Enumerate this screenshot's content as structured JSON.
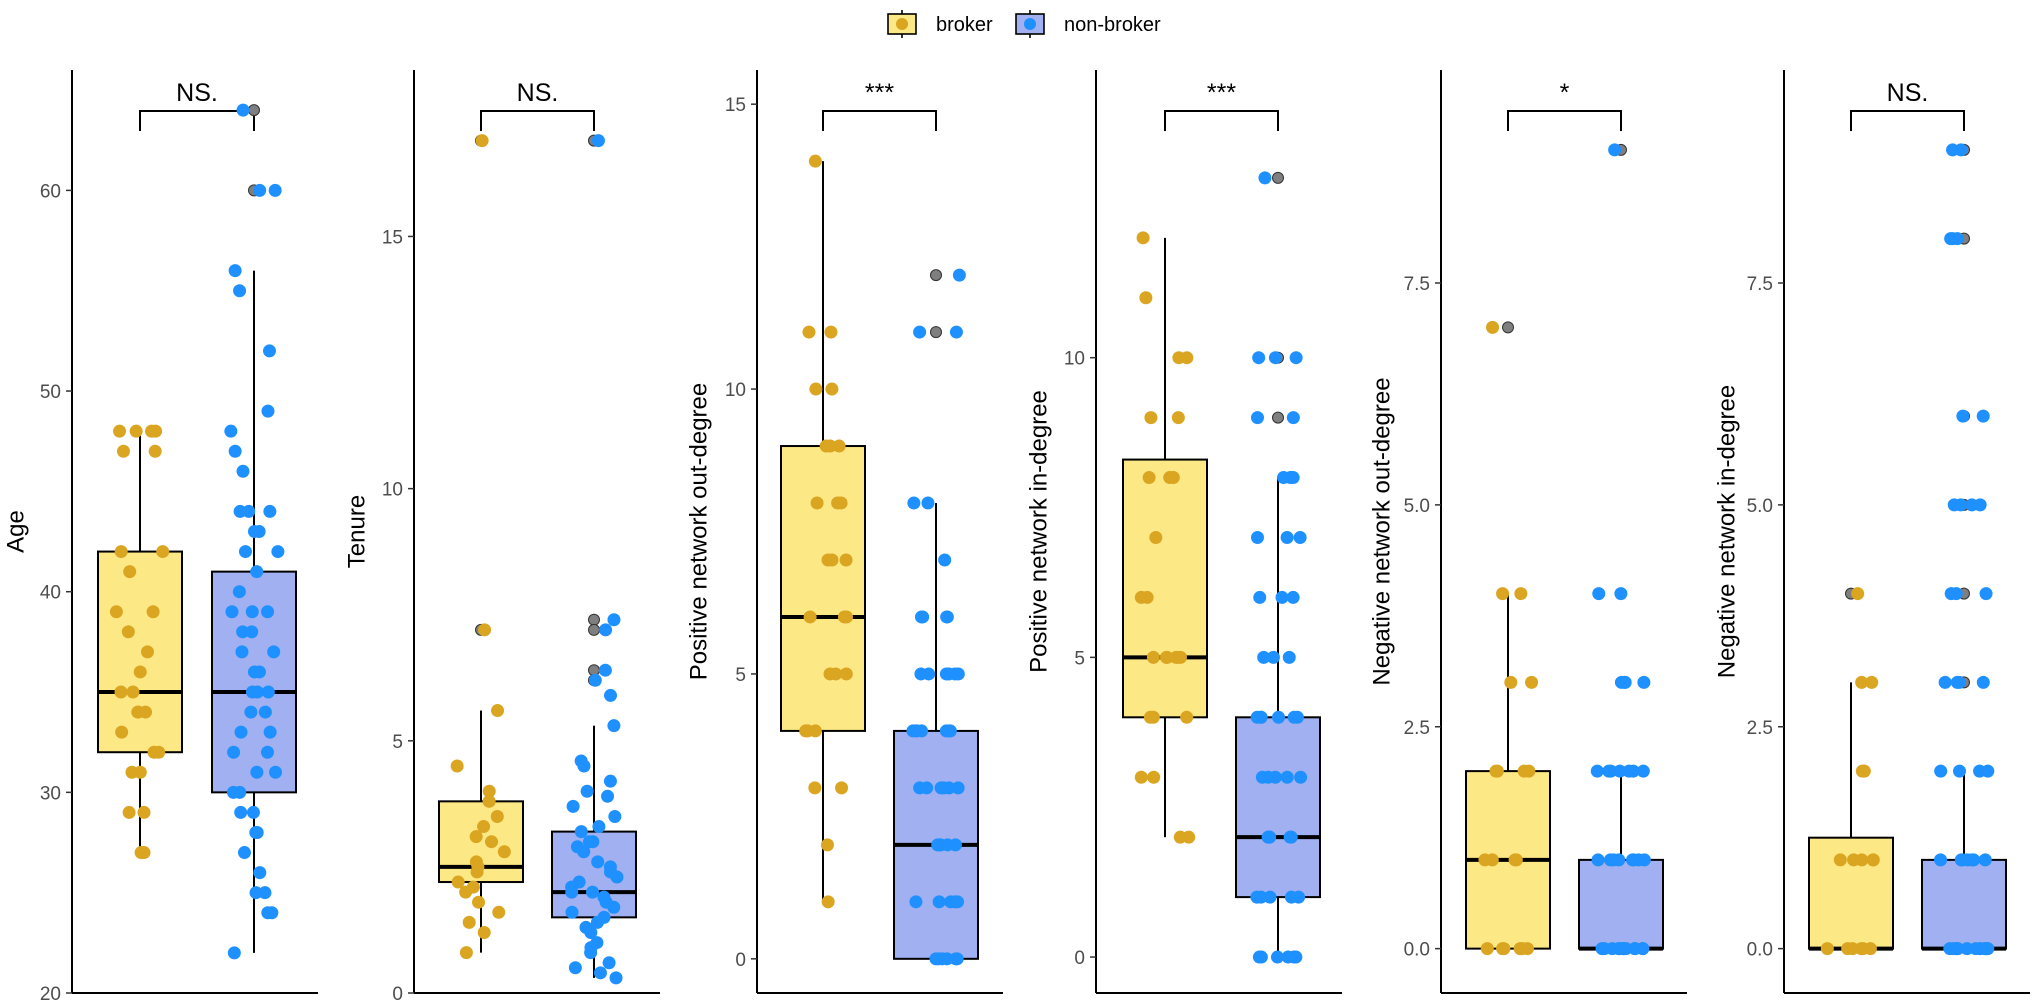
{
  "legend": {
    "items": [
      {
        "label": "broker",
        "fill": "#FDE886",
        "point": "#DAA520"
      },
      {
        "label": "non-broker",
        "fill": "#A0B0F0",
        "point": "#1E90FF"
      }
    ]
  },
  "colors": {
    "outlier": "#7f7f7f",
    "axis": "#000000",
    "tick_text": "#4d4d4d"
  },
  "chart_data": [
    {
      "type": "boxplot",
      "ylabel": "Age",
      "ylim": [
        20,
        66
      ],
      "ticks": [
        20,
        30,
        40,
        50,
        60
      ],
      "tick_labels": [
        "20",
        "30",
        "40",
        "50",
        "60"
      ],
      "significance": "NS.",
      "groups": [
        {
          "name": "broker",
          "q1": 32,
          "median": 35,
          "q3": 42,
          "whisker_low": 27,
          "whisker_high": 48,
          "outliers": [],
          "points": [
            48,
            48,
            48,
            48,
            47,
            47,
            42,
            42,
            41,
            39,
            39,
            38,
            37,
            36,
            35,
            35,
            34,
            34,
            34,
            33,
            32,
            32,
            31,
            31,
            29,
            29,
            27,
            27
          ]
        },
        {
          "name": "non-broker",
          "q1": 30,
          "median": 35,
          "q3": 41,
          "whisker_low": 22,
          "whisker_high": 56,
          "outliers": [
            64,
            60
          ],
          "points": [
            64,
            60,
            60,
            56,
            55,
            52,
            49,
            48,
            47,
            46,
            44,
            44,
            44,
            43,
            43,
            42,
            42,
            41,
            40,
            39,
            39,
            39,
            38,
            38,
            37,
            37,
            36,
            36,
            35,
            35,
            35,
            34,
            34,
            33,
            33,
            32,
            32,
            31,
            31,
            30,
            30,
            29,
            29,
            28,
            28,
            27,
            26,
            25,
            25,
            24,
            24,
            22
          ]
        }
      ]
    },
    {
      "type": "boxplot",
      "ylabel": "Tenure",
      "ylim": [
        0,
        18.3
      ],
      "ticks": [
        0,
        5,
        10,
        15
      ],
      "tick_labels": [
        "0",
        "5",
        "10",
        "15"
      ],
      "significance": "NS.",
      "groups": [
        {
          "name": "broker",
          "q1": 2.2,
          "median": 2.5,
          "q3": 3.8,
          "whisker_low": 0.8,
          "whisker_high": 5.6,
          "outliers": [
            16.9,
            7.2
          ],
          "points": [
            16.9,
            7.2,
            5.6,
            4.5,
            4.0,
            3.8,
            3.5,
            3.3,
            3.1,
            3.0,
            2.8,
            2.6,
            2.5,
            2.4,
            2.2,
            2.1,
            2.0,
            1.8,
            1.6,
            1.4,
            1.2,
            0.8
          ]
        },
        {
          "name": "non-broker",
          "q1": 1.5,
          "median": 2.0,
          "q3": 3.2,
          "whisker_low": 0.3,
          "whisker_high": 5.3,
          "outliers": [
            16.9,
            7.4,
            7.2,
            6.4,
            6.2
          ],
          "points": [
            16.9,
            7.4,
            7.2,
            6.4,
            6.2,
            5.9,
            5.3,
            4.6,
            4.5,
            4.2,
            4.0,
            3.9,
            3.7,
            3.5,
            3.3,
            3.2,
            3.0,
            3.0,
            2.9,
            2.8,
            2.6,
            2.5,
            2.4,
            2.3,
            2.2,
            2.1,
            2.0,
            2.0,
            1.9,
            1.8,
            1.7,
            1.6,
            1.5,
            1.4,
            1.3,
            1.2,
            1.0,
            0.9,
            0.8,
            0.6,
            0.5,
            0.4,
            0.3
          ]
        }
      ]
    },
    {
      "type": "boxplot",
      "ylabel": "Positive network out-degree",
      "ylim": [
        -0.6,
        15.6
      ],
      "ticks": [
        0,
        5,
        10,
        15
      ],
      "tick_labels": [
        "0",
        "5",
        "10",
        "15"
      ],
      "significance": "***",
      "groups": [
        {
          "name": "broker",
          "q1": 4,
          "median": 6,
          "q3": 9,
          "whisker_low": 1,
          "whisker_high": 14,
          "outliers": [],
          "points": [
            14,
            11,
            11,
            10,
            10,
            9,
            9,
            9,
            8,
            8,
            8,
            7,
            7,
            7,
            6,
            6,
            6,
            5,
            5,
            5,
            4,
            4,
            4,
            3,
            3,
            2,
            1
          ]
        },
        {
          "name": "non-broker",
          "q1": 0,
          "median": 2,
          "q3": 4,
          "whisker_low": 0,
          "whisker_high": 8,
          "outliers": [
            12,
            11
          ],
          "points": [
            12,
            11,
            11,
            8,
            8,
            7,
            6,
            6,
            6,
            6,
            5,
            5,
            5,
            5,
            5,
            5,
            4,
            4,
            4,
            4,
            4,
            4,
            4,
            3,
            3,
            3,
            3,
            3,
            3,
            2,
            2,
            2,
            2,
            2,
            1,
            1,
            1,
            1,
            1,
            0,
            0,
            0,
            0,
            0,
            0
          ]
        }
      ]
    },
    {
      "type": "boxplot",
      "ylabel": "Positive network in-degree",
      "ylim": [
        -0.6,
        14.8
      ],
      "ticks": [
        0,
        5,
        10
      ],
      "tick_labels": [
        "0",
        "5",
        "10"
      ],
      "significance": "***",
      "groups": [
        {
          "name": "broker",
          "q1": 4,
          "median": 5,
          "q3": 8.3,
          "whisker_low": 2,
          "whisker_high": 12,
          "outliers": [],
          "points": [
            12,
            11,
            10,
            10,
            9,
            9,
            8,
            8,
            8,
            7,
            6,
            6,
            5,
            5,
            5,
            5,
            5,
            5,
            4,
            4,
            4,
            3,
            3,
            2,
            2
          ]
        },
        {
          "name": "non-broker",
          "q1": 1,
          "median": 2,
          "q3": 4,
          "whisker_low": 0,
          "whisker_high": 8,
          "outliers": [
            13,
            10,
            9
          ],
          "points": [
            13,
            10,
            10,
            10,
            9,
            9,
            8,
            8,
            8,
            7,
            7,
            7,
            6,
            6,
            6,
            5,
            5,
            5,
            4,
            4,
            4,
            4,
            4,
            4,
            3,
            3,
            3,
            3,
            3,
            2,
            2,
            2,
            2,
            2,
            1,
            1,
            1,
            1,
            1,
            0,
            0,
            0,
            0,
            0,
            0
          ]
        }
      ]
    },
    {
      "type": "boxplot",
      "ylabel": "Negative network out-degree",
      "ylim": [
        -0.5,
        9.9
      ],
      "ticks": [
        0,
        2.5,
        5,
        7.5
      ],
      "tick_labels": [
        "0.0",
        "2.5",
        "5.0",
        "7.5"
      ],
      "significance": "*",
      "groups": [
        {
          "name": "broker",
          "q1": 0,
          "median": 1,
          "q3": 2,
          "whisker_low": 0,
          "whisker_high": 4,
          "outliers": [
            7
          ],
          "points": [
            7,
            4,
            4,
            3,
            3,
            2,
            2,
            2,
            2,
            1,
            1,
            1,
            1,
            0,
            0,
            0,
            0,
            0,
            0
          ]
        },
        {
          "name": "non-broker",
          "q1": 0,
          "median": 0,
          "q3": 1,
          "whisker_low": 0,
          "whisker_high": 2,
          "outliers": [
            9,
            4,
            3
          ],
          "points": [
            9,
            4,
            4,
            3,
            3,
            3,
            3,
            2,
            2,
            2,
            2,
            2,
            2,
            2,
            1,
            1,
            1,
            1,
            1,
            1,
            1,
            1,
            0,
            0,
            0,
            0,
            0,
            0,
            0,
            0,
            0,
            0,
            0,
            0,
            0,
            0
          ]
        }
      ]
    },
    {
      "type": "boxplot",
      "ylabel": "Negative network in-degree",
      "ylim": [
        -0.5,
        9.9
      ],
      "ticks": [
        0,
        2.5,
        5,
        7.5
      ],
      "tick_labels": [
        "0.0",
        "2.5",
        "5.0",
        "7.5"
      ],
      "significance": "NS.",
      "groups": [
        {
          "name": "broker",
          "q1": 0,
          "median": 0,
          "q3": 1.25,
          "whisker_low": 0,
          "whisker_high": 3,
          "outliers": [
            4
          ],
          "points": [
            4,
            3,
            3,
            2,
            2,
            1,
            1,
            1,
            1,
            1,
            0,
            0,
            0,
            0,
            0,
            0
          ]
        },
        {
          "name": "non-broker",
          "q1": 0,
          "median": 0,
          "q3": 1,
          "whisker_low": 0,
          "whisker_high": 2,
          "outliers": [
            9,
            8,
            6,
            5,
            4,
            3
          ],
          "points": [
            9,
            9,
            8,
            8,
            8,
            6,
            6,
            5,
            5,
            5,
            5,
            4,
            4,
            4,
            3,
            3,
            3,
            3,
            2,
            2,
            2,
            2,
            1,
            1,
            1,
            1,
            1,
            1,
            1,
            0,
            0,
            0,
            0,
            0,
            0,
            0,
            0,
            0,
            0,
            0,
            0,
            0,
            0
          ]
        }
      ]
    }
  ]
}
